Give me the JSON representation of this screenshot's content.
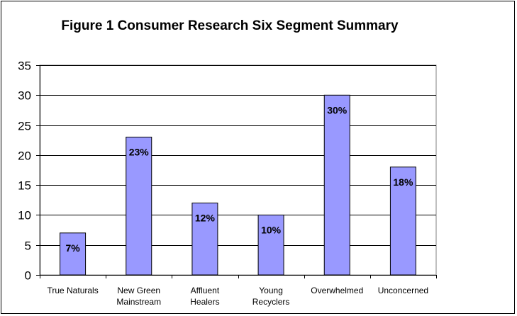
{
  "chart_data": {
    "type": "bar",
    "title": "Figure 1 Consumer Research Six Segment Summary",
    "categories": [
      [
        "True Naturals"
      ],
      [
        "New Green",
        "Mainstream"
      ],
      [
        "Affluent",
        "Healers"
      ],
      [
        "Young",
        "Recyclers"
      ],
      [
        "Overwhelmed"
      ],
      [
        "Unconcerned"
      ]
    ],
    "values": [
      7,
      23,
      12,
      10,
      30,
      18
    ],
    "data_labels": [
      "7%",
      "23%",
      "12%",
      "10%",
      "30%",
      "18%"
    ],
    "yticks": [
      "0",
      "5",
      "10",
      "15",
      "20",
      "25",
      "30",
      "35"
    ],
    "ylim": [
      0,
      35
    ],
    "grid": true,
    "legend": "none",
    "colors": {
      "bar": "#9999ff",
      "bar_border": "#000000",
      "grid": "#000000"
    }
  }
}
